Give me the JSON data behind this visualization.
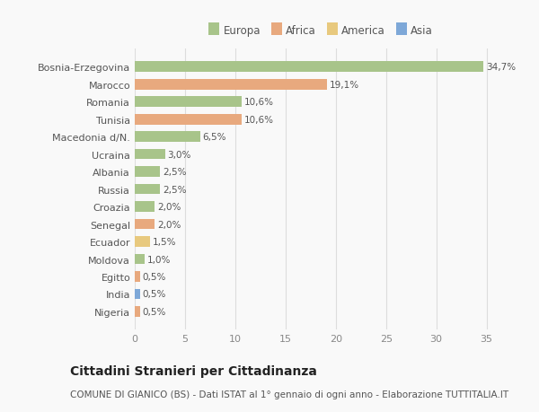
{
  "categories": [
    "Bosnia-Erzegovina",
    "Marocco",
    "Romania",
    "Tunisia",
    "Macedonia d/N.",
    "Ucraina",
    "Albania",
    "Russia",
    "Croazia",
    "Senegal",
    "Ecuador",
    "Moldova",
    "Egitto",
    "India",
    "Nigeria"
  ],
  "values": [
    34.7,
    19.1,
    10.6,
    10.6,
    6.5,
    3.0,
    2.5,
    2.5,
    2.0,
    2.0,
    1.5,
    1.0,
    0.5,
    0.5,
    0.5
  ],
  "labels": [
    "34,7%",
    "19,1%",
    "10,6%",
    "10,6%",
    "6,5%",
    "3,0%",
    "2,5%",
    "2,5%",
    "2,0%",
    "2,0%",
    "1,5%",
    "1,0%",
    "0,5%",
    "0,5%",
    "0,5%"
  ],
  "continents": [
    "Europa",
    "Africa",
    "Europa",
    "Africa",
    "Europa",
    "Europa",
    "Europa",
    "Europa",
    "Europa",
    "Africa",
    "America",
    "Europa",
    "Africa",
    "Asia",
    "Africa"
  ],
  "continent_colors": {
    "Europa": "#a8c48a",
    "Africa": "#e8a97e",
    "America": "#e8c97e",
    "Asia": "#7ea8d8"
  },
  "legend_order": [
    "Europa",
    "Africa",
    "America",
    "Asia"
  ],
  "title": "Cittadini Stranieri per Cittadinanza",
  "subtitle": "COMUNE DI GIANICO (BS) - Dati ISTAT al 1° gennaio di ogni anno - Elaborazione TUTTITALIA.IT",
  "xlim": [
    0,
    37
  ],
  "xticks": [
    0,
    5,
    10,
    15,
    20,
    25,
    30,
    35
  ],
  "background_color": "#f9f9f9",
  "grid_color": "#dddddd",
  "bar_height": 0.6,
  "title_fontsize": 10,
  "subtitle_fontsize": 7.5,
  "tick_fontsize": 8,
  "label_fontsize": 7.5,
  "legend_fontsize": 8.5
}
